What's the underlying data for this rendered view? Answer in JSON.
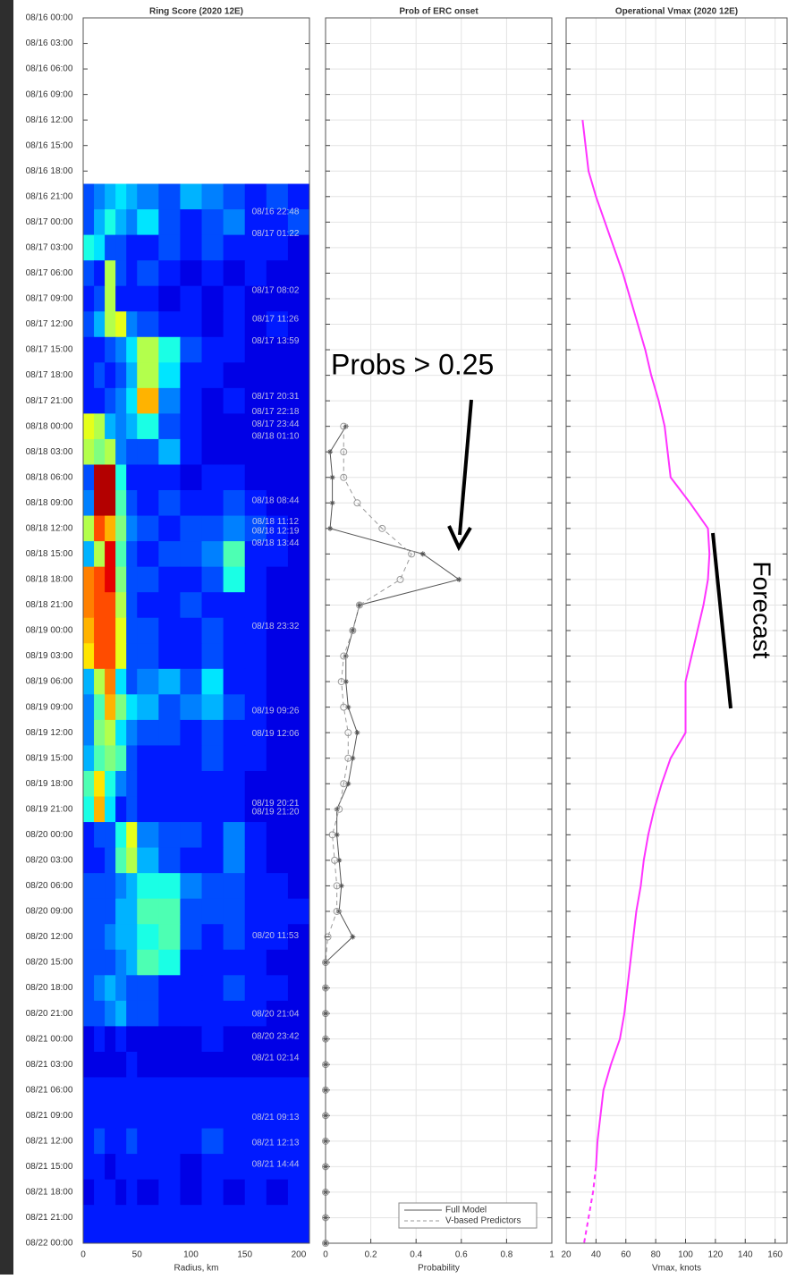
{
  "chart_data": [
    {
      "type": "heatmap",
      "title": "Ring Score (2020 12E)",
      "xlabel": "Radius, km",
      "xlim": [
        0,
        210
      ],
      "xticks": [
        0,
        50,
        100,
        150,
        200
      ],
      "colormap": "jet",
      "clim": [
        0,
        1
      ],
      "categories": [
        "08/16 00:00",
        "08/16 03:00",
        "08/16 06:00",
        "08/16 09:00",
        "08/16 12:00",
        "08/16 15:00",
        "08/16 18:00",
        "08/16 21:00",
        "08/17 00:00",
        "08/17 03:00",
        "08/17 06:00",
        "08/17 09:00",
        "08/17 12:00",
        "08/17 15:00",
        "08/17 18:00",
        "08/17 21:00",
        "08/18 00:00",
        "08/18 03:00",
        "08/18 06:00",
        "08/18 09:00",
        "08/18 12:00",
        "08/18 15:00",
        "08/18 18:00",
        "08/18 21:00",
        "08/19 00:00",
        "08/19 03:00",
        "08/19 06:00",
        "08/19 09:00",
        "08/19 12:00",
        "08/19 15:00",
        "08/19 18:00",
        "08/19 21:00",
        "08/20 00:00",
        "08/20 03:00",
        "08/20 06:00",
        "08/20 09:00",
        "08/20 12:00",
        "08/20 15:00",
        "08/20 18:00",
        "08/20 21:00",
        "08/21 00:00",
        "08/21 03:00",
        "08/21 06:00",
        "08/21 09:00",
        "08/21 12:00",
        "08/21 15:00",
        "08/21 18:00",
        "08/21 21:00",
        "08/22 00:00"
      ],
      "xbins": [
        0,
        10,
        20,
        30,
        40,
        50,
        70,
        90,
        110,
        130,
        150,
        170,
        190,
        210
      ],
      "values": [
        null,
        null,
        null,
        null,
        null,
        null,
        null,
        [
          0.2,
          0.25,
          0.3,
          0.35,
          0.3,
          0.25,
          0.2,
          0.3,
          0.25,
          0.2,
          0.15,
          0.2,
          0.15
        ],
        [
          0.2,
          0.3,
          0.4,
          0.3,
          0.25,
          0.35,
          0.2,
          0.15,
          0.2,
          0.25,
          0.15,
          0.15,
          0.2
        ],
        [
          0.4,
          0.35,
          0.2,
          0.2,
          0.15,
          0.15,
          0.2,
          0.15,
          0.2,
          0.15,
          0.15,
          0.15,
          0.1
        ],
        [
          0.2,
          0.15,
          0.55,
          0.2,
          0.15,
          0.2,
          0.15,
          0.1,
          0.15,
          0.1,
          0.15,
          0.1,
          0.1
        ],
        [
          0.15,
          0.2,
          0.55,
          0.15,
          0.15,
          0.15,
          0.1,
          0.15,
          0.1,
          0.15,
          0.1,
          0.1,
          0.1
        ],
        [
          0.2,
          0.3,
          0.55,
          0.6,
          0.25,
          0.2,
          0.15,
          0.15,
          0.1,
          0.15,
          0.1,
          0.15,
          0.1
        ],
        [
          0.15,
          0.15,
          0.2,
          0.25,
          0.35,
          0.55,
          0.4,
          0.2,
          0.15,
          0.15,
          0.1,
          0.1,
          0.1
        ],
        [
          0.15,
          0.2,
          0.15,
          0.2,
          0.3,
          0.55,
          0.35,
          0.15,
          0.15,
          0.1,
          0.1,
          0.1,
          0.1
        ],
        [
          0.15,
          0.15,
          0.2,
          0.25,
          0.35,
          0.7,
          0.25,
          0.15,
          0.1,
          0.15,
          0.1,
          0.1,
          0.1
        ],
        [
          0.6,
          0.55,
          0.3,
          0.25,
          0.3,
          0.4,
          0.2,
          0.15,
          0.1,
          0.1,
          0.1,
          0.1,
          0.1
        ],
        [
          0.55,
          0.5,
          0.55,
          0.25,
          0.2,
          0.2,
          0.3,
          0.15,
          0.1,
          0.1,
          0.1,
          0.1,
          0.1
        ],
        [
          0.2,
          0.95,
          0.95,
          0.4,
          0.15,
          0.15,
          0.15,
          0.1,
          0.15,
          0.15,
          0.1,
          0.1,
          0.1
        ],
        [
          0.25,
          0.95,
          0.95,
          0.45,
          0.2,
          0.15,
          0.2,
          0.15,
          0.15,
          0.2,
          0.15,
          0.1,
          0.1
        ],
        [
          0.55,
          0.8,
          0.7,
          0.5,
          0.25,
          0.2,
          0.15,
          0.2,
          0.2,
          0.25,
          0.2,
          0.15,
          0.1
        ],
        [
          0.3,
          0.55,
          0.9,
          0.45,
          0.2,
          0.15,
          0.2,
          0.2,
          0.25,
          0.45,
          0.15,
          0.15,
          0.1
        ],
        [
          0.75,
          0.8,
          0.9,
          0.5,
          0.2,
          0.2,
          0.15,
          0.15,
          0.2,
          0.4,
          0.15,
          0.1,
          0.1
        ],
        [
          0.75,
          0.8,
          0.8,
          0.55,
          0.2,
          0.15,
          0.15,
          0.2,
          0.15,
          0.15,
          0.15,
          0.1,
          0.1
        ],
        [
          0.7,
          0.8,
          0.8,
          0.6,
          0.2,
          0.2,
          0.15,
          0.15,
          0.2,
          0.15,
          0.15,
          0.1,
          0.1
        ],
        [
          0.65,
          0.8,
          0.8,
          0.6,
          0.2,
          0.2,
          0.15,
          0.15,
          0.2,
          0.15,
          0.15,
          0.1,
          0.1
        ],
        [
          0.3,
          0.55,
          0.75,
          0.35,
          0.2,
          0.25,
          0.3,
          0.2,
          0.35,
          0.15,
          0.15,
          0.1,
          0.1
        ],
        [
          0.25,
          0.45,
          0.7,
          0.5,
          0.35,
          0.3,
          0.2,
          0.25,
          0.3,
          0.2,
          0.15,
          0.1,
          0.1
        ],
        [
          0.25,
          0.5,
          0.55,
          0.35,
          0.25,
          0.2,
          0.2,
          0.15,
          0.2,
          0.15,
          0.15,
          0.1,
          0.1
        ],
        [
          0.3,
          0.45,
          0.5,
          0.45,
          0.2,
          0.15,
          0.15,
          0.15,
          0.2,
          0.15,
          0.15,
          0.1,
          0.1
        ],
        [
          0.45,
          0.65,
          0.4,
          0.25,
          0.2,
          0.15,
          0.15,
          0.15,
          0.15,
          0.15,
          0.1,
          0.1,
          0.1
        ],
        [
          0.4,
          0.7,
          0.35,
          0.15,
          0.2,
          0.15,
          0.15,
          0.15,
          0.15,
          0.15,
          0.1,
          0.1,
          0.1
        ],
        [
          0.15,
          0.2,
          0.2,
          0.4,
          0.6,
          0.25,
          0.2,
          0.2,
          0.15,
          0.25,
          0.15,
          0.1,
          0.1
        ],
        [
          0.15,
          0.15,
          0.2,
          0.45,
          0.55,
          0.3,
          0.2,
          0.15,
          0.15,
          0.25,
          0.15,
          0.1,
          0.1
        ],
        [
          0.2,
          0.2,
          0.2,
          0.25,
          0.3,
          0.4,
          0.4,
          0.25,
          0.2,
          0.2,
          0.15,
          0.15,
          0.1
        ],
        [
          0.2,
          0.2,
          0.2,
          0.3,
          0.3,
          0.45,
          0.45,
          0.2,
          0.2,
          0.2,
          0.15,
          0.15,
          0.15
        ],
        [
          0.2,
          0.2,
          0.25,
          0.3,
          0.3,
          0.4,
          0.45,
          0.2,
          0.15,
          0.2,
          0.15,
          0.15,
          0.1
        ],
        [
          0.2,
          0.2,
          0.2,
          0.25,
          0.3,
          0.45,
          0.4,
          0.15,
          0.15,
          0.15,
          0.15,
          0.1,
          0.1
        ],
        [
          0.2,
          0.25,
          0.3,
          0.25,
          0.2,
          0.2,
          0.15,
          0.15,
          0.15,
          0.2,
          0.15,
          0.15,
          0.1
        ],
        [
          0.2,
          0.2,
          0.25,
          0.3,
          0.2,
          0.2,
          0.15,
          0.15,
          0.15,
          0.15,
          0.15,
          0.1,
          0.1
        ],
        [
          0.1,
          0.15,
          0.1,
          0.15,
          0.1,
          0.1,
          0.1,
          0.1,
          0.15,
          0.1,
          0.1,
          0.1,
          0.1
        ],
        [
          0.1,
          0.1,
          0.1,
          0.1,
          0.15,
          0.1,
          0.1,
          0.1,
          0.1,
          0.1,
          0.1,
          0.1,
          0.1
        ],
        [
          0.15,
          0.15,
          0.15,
          0.15,
          0.15,
          0.15,
          0.15,
          0.15,
          0.15,
          0.15,
          0.15,
          0.15,
          0.15
        ],
        [
          0.15,
          0.15,
          0.15,
          0.15,
          0.15,
          0.15,
          0.15,
          0.15,
          0.15,
          0.15,
          0.15,
          0.15,
          0.15
        ],
        [
          0.15,
          0.2,
          0.15,
          0.15,
          0.2,
          0.15,
          0.15,
          0.15,
          0.2,
          0.15,
          0.15,
          0.15,
          0.15
        ],
        [
          0.15,
          0.15,
          0.1,
          0.15,
          0.15,
          0.15,
          0.15,
          0.1,
          0.15,
          0.15,
          0.15,
          0.15,
          0.15
        ],
        [
          0.1,
          0.15,
          0.15,
          0.1,
          0.15,
          0.1,
          0.15,
          0.1,
          0.15,
          0.1,
          0.15,
          0.1,
          0.15
        ],
        [
          0.15,
          0.15,
          0.15,
          0.15,
          0.15,
          0.15,
          0.15,
          0.15,
          0.15,
          0.15,
          0.15,
          0.15,
          0.15
        ],
        [
          0.15,
          0.15,
          0.15,
          0.15,
          0.15,
          0.15,
          0.15,
          0.15,
          0.15,
          0.15,
          0.15,
          0.15,
          0.15
        ]
      ],
      "annotations": [
        "08/16 22:48",
        "08/17 01:22",
        "08/17 08:02",
        "08/17 11:26",
        "08/17 13:59",
        "08/17 20:31",
        "08/17 22:18",
        "08/17 23:44",
        "08/18 01:10",
        "08/18 08:44",
        "08/18 11:12",
        "08/18 12:19",
        "08/18 13:44",
        "08/18 23:32",
        "08/19 09:26",
        "08/19 12:06",
        "08/19 20:21",
        "08/19 21:20",
        "08/20 11:53",
        "08/20 21:04",
        "08/20 23:42",
        "08/21 02:14",
        "08/21 09:13",
        "08/21 12:13",
        "08/21 14:44"
      ]
    },
    {
      "type": "line",
      "title": "Prob of ERC onset",
      "xlabel": "Probability",
      "xlim": [
        0,
        1
      ],
      "xticks": [
        0,
        0.2,
        0.4,
        0.6,
        0.8,
        1
      ],
      "grid": true,
      "legend": "lower right",
      "annotation": "Probs > 0.25",
      "series": [
        {
          "name": "Full Model",
          "color": "#555555",
          "marker": "star",
          "dash": false,
          "values": [
            null,
            null,
            null,
            null,
            null,
            null,
            null,
            null,
            null,
            null,
            null,
            null,
            null,
            null,
            null,
            null,
            0.09,
            0.02,
            0.03,
            0.03,
            0.02,
            0.43,
            0.59,
            0.15,
            0.12,
            0.09,
            0.09,
            0.1,
            0.14,
            0.12,
            0.1,
            0.05,
            0.05,
            0.06,
            0.07,
            0.06,
            0.12,
            0,
            0,
            0,
            0,
            0,
            0,
            0,
            0,
            0,
            0,
            0,
            0
          ]
        },
        {
          "name": "V-based Predictors",
          "color": "#9a9a9a",
          "marker": "circle",
          "dash": true,
          "values": [
            null,
            null,
            null,
            null,
            null,
            null,
            null,
            null,
            null,
            null,
            null,
            null,
            null,
            null,
            null,
            null,
            0.08,
            0.08,
            0.08,
            0.14,
            0.25,
            0.38,
            0.33,
            0.15,
            0.12,
            0.08,
            0.07,
            0.08,
            0.1,
            0.1,
            0.08,
            0.06,
            0.03,
            0.04,
            0.05,
            0.05,
            0.01,
            0,
            0,
            0,
            0,
            0,
            0,
            0,
            0,
            0,
            0,
            0,
            0
          ]
        }
      ]
    },
    {
      "type": "line",
      "title": "Operational Vmax (2020 12E)",
      "xlabel": "Vmax, knots",
      "xlim": [
        20,
        168
      ],
      "xticks": [
        20,
        40,
        60,
        80,
        100,
        120,
        140,
        160
      ],
      "grid": true,
      "annotation": "Forecast",
      "series": [
        {
          "color": "#ff33ff",
          "marker": "none",
          "dash": false,
          "values": [
            null,
            null,
            null,
            null,
            31,
            33,
            35,
            40,
            46,
            52,
            58,
            63,
            68,
            73,
            77,
            82,
            86,
            88,
            90,
            103,
            115,
            116,
            115,
            112,
            108,
            104,
            100,
            100,
            100,
            90,
            84,
            79,
            75,
            72,
            70,
            67,
            65,
            63,
            61,
            59,
            56,
            50,
            45,
            43,
            41,
            40,
            null,
            null,
            null
          ]
        },
        {
          "color": "#ff33ff",
          "marker": "none",
          "dash": true,
          "values": [
            null,
            null,
            null,
            null,
            null,
            null,
            null,
            null,
            null,
            null,
            null,
            null,
            null,
            null,
            null,
            null,
            null,
            null,
            null,
            null,
            null,
            null,
            null,
            null,
            null,
            null,
            null,
            null,
            null,
            null,
            null,
            null,
            null,
            null,
            null,
            null,
            null,
            null,
            null,
            null,
            null,
            null,
            null,
            null,
            null,
            40,
            38,
            35,
            32
          ]
        }
      ]
    }
  ]
}
